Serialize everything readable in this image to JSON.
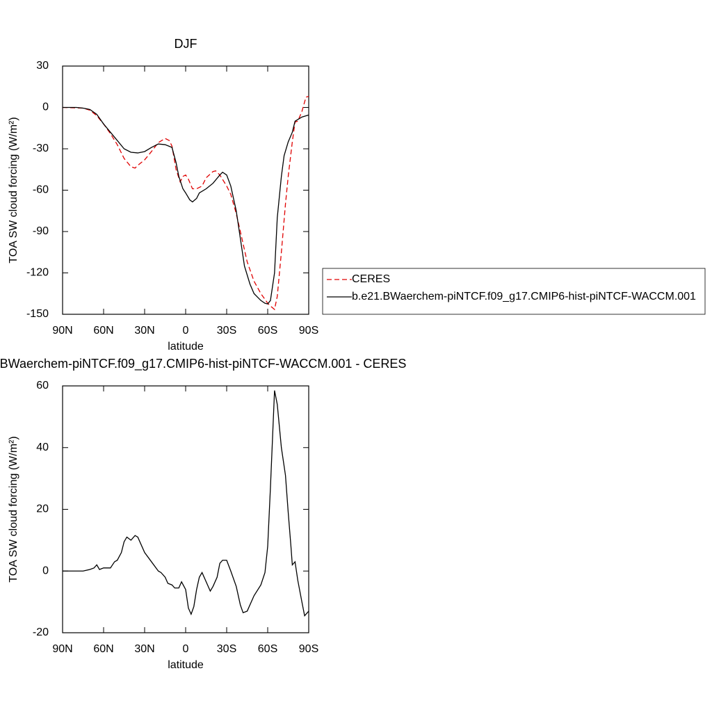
{
  "chart_data": [
    {
      "type": "line",
      "title": "DJF",
      "x_label": "latitude",
      "y_label": "TOA SW cloud forcing (W/m²)",
      "xlim": [
        -90,
        90
      ],
      "xticks": [
        {
          "value": -90,
          "label": "90N"
        },
        {
          "value": -60,
          "label": "60N"
        },
        {
          "value": -30,
          "label": "30N"
        },
        0,
        {
          "value": 30,
          "label": "30S"
        },
        {
          "value": 60,
          "label": "60S"
        },
        {
          "value": 90,
          "label": "90S"
        }
      ],
      "ylim": [
        -150,
        30
      ],
      "yticks": [
        -150,
        -120,
        -90,
        -60,
        -30,
        0,
        30
      ],
      "legend": "right",
      "series": [
        {
          "name": "CERES",
          "color": "#e00000",
          "line_style": "dashed",
          "x": [
            -90,
            -75,
            -70,
            -65,
            -60,
            -55,
            -50,
            -45,
            -40,
            -37,
            -35,
            -30,
            -25,
            -20,
            -15,
            -12,
            -10,
            -7,
            -4,
            -2,
            0,
            2,
            5,
            8,
            12,
            15,
            20,
            22,
            25,
            30,
            33,
            37,
            40,
            45,
            50,
            55,
            60,
            62,
            65,
            67,
            70,
            73,
            75,
            78,
            80,
            82,
            85,
            88,
            90
          ],
          "values": [
            0,
            -0.5,
            -2,
            -6,
            -12,
            -19,
            -27,
            -37,
            -43,
            -44,
            -42,
            -38,
            -32,
            -25.5,
            -22.5,
            -24,
            -28,
            -45,
            -54,
            -50,
            -49,
            -52,
            -59,
            -59,
            -57,
            -51,
            -46.5,
            -46,
            -49,
            -57,
            -63,
            -77,
            -90,
            -112,
            -126,
            -135,
            -142,
            -144,
            -146.5,
            -137,
            -105,
            -70,
            -50,
            -25,
            -10.5,
            -10,
            -3,
            7.5,
            8
          ]
        },
        {
          "name": "b.e21.BWaerchem-piNTCF.f09_g17.CMIP6-hist-piNTCF-WACCM.001",
          "color": "#000000",
          "line_style": "solid",
          "x": [
            -90,
            -80,
            -75,
            -70,
            -65,
            -60,
            -55,
            -50,
            -45,
            -40,
            -35,
            -30,
            -25,
            -20,
            -15,
            -10,
            -7,
            -5,
            -2,
            0,
            3,
            5,
            8,
            10,
            15,
            20,
            25,
            27,
            30,
            33,
            37,
            40,
            43,
            47,
            50,
            55,
            58,
            60,
            62,
            65,
            67,
            70,
            72,
            75,
            78,
            80,
            85,
            90
          ],
          "values": [
            0,
            0,
            -0.5,
            -1.5,
            -5,
            -12,
            -18,
            -24,
            -30,
            -32.5,
            -33,
            -32,
            -29,
            -26.5,
            -27,
            -29,
            -40,
            -50,
            -59,
            -62,
            -67,
            -68.5,
            -66,
            -62,
            -59,
            -55,
            -49,
            -47,
            -49,
            -57,
            -75,
            -95,
            -115,
            -128,
            -135,
            -140,
            -142,
            -142.5,
            -140,
            -120,
            -80,
            -50,
            -35,
            -25,
            -18,
            -10,
            -7,
            -5.5
          ]
        }
      ]
    },
    {
      "type": "line",
      "title": "b.e21.BWaerchem-piNTCF.f09_g17.CMIP6-hist-piNTCF-WACCM.001 - CERES",
      "x_label": "latitude",
      "y_label": "TOA SW cloud forcing (W/m²)",
      "xlim": [
        -90,
        90
      ],
      "xticks": [
        {
          "value": -90,
          "label": "90N"
        },
        {
          "value": -60,
          "label": "60N"
        },
        {
          "value": -30,
          "label": "30N"
        },
        0,
        {
          "value": 30,
          "label": "30S"
        },
        {
          "value": 60,
          "label": "60S"
        },
        {
          "value": 90,
          "label": "90S"
        }
      ],
      "ylim": [
        -20,
        60
      ],
      "yticks": [
        -20,
        0,
        20,
        40,
        60
      ],
      "series": [
        {
          "color": "#000000",
          "line_style": "solid",
          "x": [
            -90,
            -75,
            -70,
            -67,
            -65,
            -63,
            -60,
            -55,
            -52,
            -50,
            -47,
            -45,
            -43,
            -40,
            -37,
            -35,
            -30,
            -25,
            -20,
            -18,
            -15,
            -13,
            -10,
            -8,
            -5,
            -3,
            0,
            2,
            4,
            6,
            8,
            10,
            12,
            15,
            18,
            20,
            23,
            25,
            27,
            30,
            33,
            37,
            40,
            42,
            45,
            50,
            55,
            58,
            60,
            62,
            64,
            65,
            67,
            70,
            73,
            75,
            77,
            78,
            80,
            82,
            85,
            87,
            90
          ],
          "values": [
            0,
            0,
            0.5,
            1,
            2,
            0.5,
            1,
            1,
            3,
            3.5,
            6,
            9.5,
            11,
            10,
            11.5,
            11,
            6,
            3,
            0,
            -0.5,
            -2,
            -4,
            -4.5,
            -5.5,
            -5.5,
            -3.5,
            -6,
            -12,
            -14,
            -11.5,
            -6,
            -2,
            -0.5,
            -3.5,
            -6.5,
            -5,
            -2,
            2.5,
            3.5,
            3.5,
            0,
            -5,
            -11,
            -13.5,
            -13,
            -8,
            -4.5,
            -0.5,
            8,
            27,
            48,
            58.5,
            54,
            40,
            31,
            19,
            8,
            2,
            3,
            -3,
            -10,
            -14.5,
            -13
          ]
        }
      ]
    }
  ]
}
